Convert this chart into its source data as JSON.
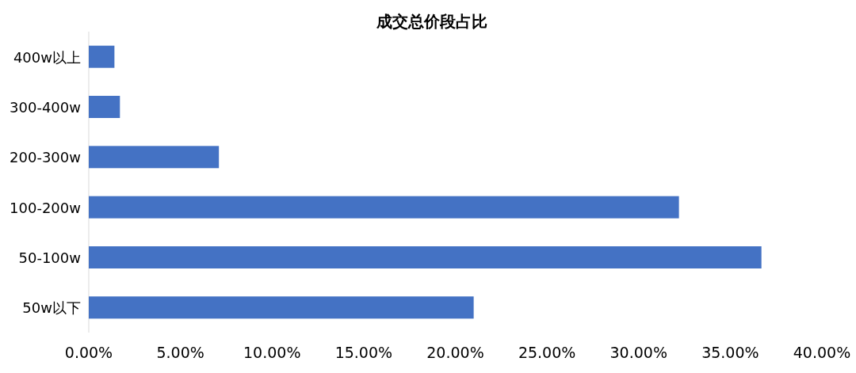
{
  "chart_data": {
    "type": "bar",
    "orientation": "horizontal",
    "title": "成交总价段占比",
    "categories": [
      "400w以上",
      "300-400w",
      "200-300w",
      "100-200w",
      "50-100w",
      "50w以下"
    ],
    "values": [
      1.4,
      1.7,
      7.1,
      32.2,
      36.7,
      21.0
    ],
    "color": "#4472c4",
    "xlim": [
      0,
      40
    ],
    "xticks": [
      {
        "value": 0,
        "label": "0.00%"
      },
      {
        "value": 5,
        "label": "5.00%"
      },
      {
        "value": 10,
        "label": "10.00%"
      },
      {
        "value": 15,
        "label": "15.00%"
      },
      {
        "value": 20,
        "label": "20.00%"
      },
      {
        "value": 25,
        "label": "25.00%"
      },
      {
        "value": 30,
        "label": "30.00%"
      },
      {
        "value": 35,
        "label": "35.00%"
      },
      {
        "value": 40,
        "label": "40.00%"
      }
    ],
    "grid": false
  }
}
